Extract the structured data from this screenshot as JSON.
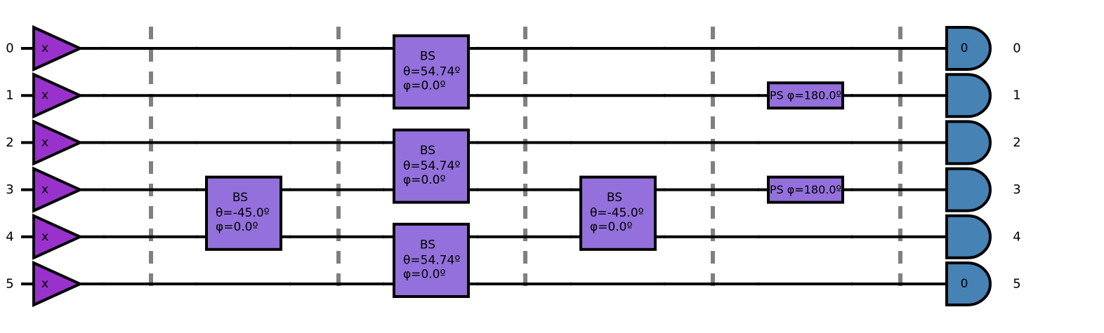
{
  "circuit": {
    "modes": [
      "0",
      "1",
      "2",
      "3",
      "4",
      "5"
    ],
    "sources": [
      {
        "mode": 0,
        "label": "x"
      },
      {
        "mode": 1,
        "label": "x"
      },
      {
        "mode": 2,
        "label": "x"
      },
      {
        "mode": 3,
        "label": "x"
      },
      {
        "mode": 4,
        "label": "x"
      },
      {
        "mode": 5,
        "label": "x"
      }
    ],
    "beam_splitters": [
      {
        "column": 1,
        "modes": [
          3,
          4
        ],
        "name": "BS",
        "theta": "θ=-45.0º",
        "phi": "φ=0.0º"
      },
      {
        "column": 2,
        "modes": [
          0,
          1
        ],
        "name": "BS",
        "theta": "θ=54.74º",
        "phi": "φ=0.0º"
      },
      {
        "column": 2,
        "modes": [
          2,
          3
        ],
        "name": "BS",
        "theta": "θ=54.74º",
        "phi": "φ=0.0º"
      },
      {
        "column": 2,
        "modes": [
          4,
          5
        ],
        "name": "BS",
        "theta": "θ=54.74º",
        "phi": "φ=0.0º"
      },
      {
        "column": 3,
        "modes": [
          3,
          4
        ],
        "name": "BS",
        "theta": "θ=-45.0º",
        "phi": "φ=0.0º"
      }
    ],
    "phase_shifters": [
      {
        "column": 4,
        "mode": 1,
        "label": "PS φ=180.0º"
      },
      {
        "column": 4,
        "mode": 3,
        "label": "PS φ=180.0º"
      }
    ],
    "barrier_count": 5,
    "detectors": [
      {
        "mode": 0,
        "label": "0"
      },
      {
        "mode": 1,
        "label": ""
      },
      {
        "mode": 2,
        "label": ""
      },
      {
        "mode": 3,
        "label": ""
      },
      {
        "mode": 4,
        "label": ""
      },
      {
        "mode": 5,
        "label": "0"
      }
    ],
    "colors": {
      "wire": "#000000",
      "source": "#9932cc",
      "gate": "#9370db",
      "detector": "#4682b4",
      "barrier": "#808080"
    }
  }
}
